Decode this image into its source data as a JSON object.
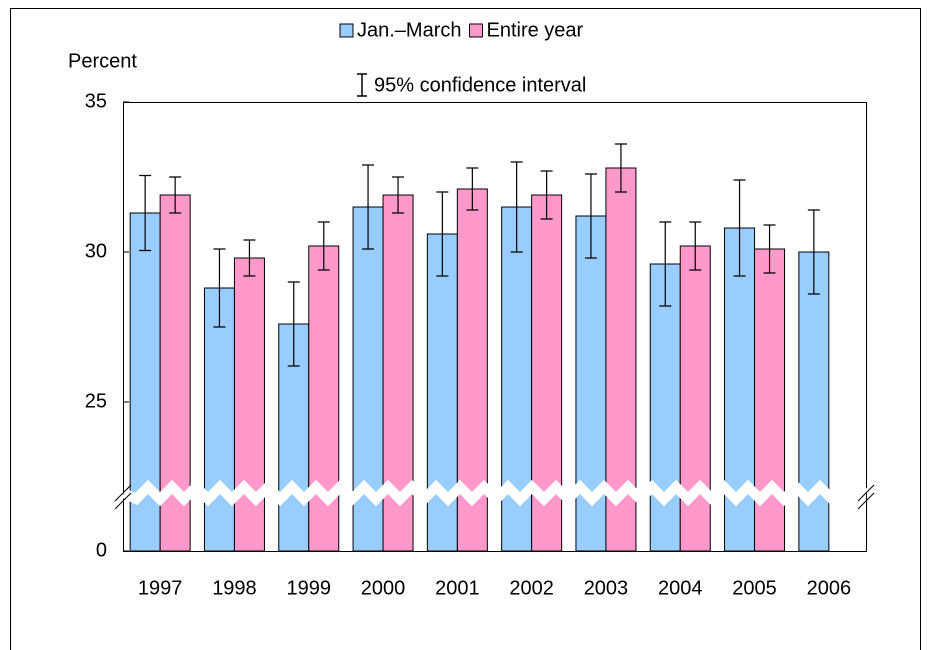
{
  "chart_data": {
    "type": "bar",
    "y_label": "Percent",
    "ci_label": "95% confidence interval",
    "categories": [
      "1997",
      "1998",
      "1999",
      "2000",
      "2001",
      "2002",
      "2003",
      "2004",
      "2005",
      "2006"
    ],
    "series": [
      {
        "name": "Jan.–March",
        "color": "#99ccff",
        "values": [
          31.3,
          28.8,
          27.6,
          31.5,
          30.6,
          31.5,
          31.2,
          29.6,
          30.8,
          30.0
        ],
        "errors": [
          1.25,
          1.3,
          1.4,
          1.4,
          1.4,
          1.5,
          1.4,
          1.4,
          1.6,
          1.4
        ]
      },
      {
        "name": "Entire year",
        "color": "#ff99cc",
        "values": [
          31.9,
          29.8,
          30.2,
          31.9,
          32.1,
          31.9,
          32.8,
          30.2,
          30.1,
          null
        ],
        "errors": [
          0.6,
          0.6,
          0.8,
          0.6,
          0.7,
          0.8,
          0.8,
          0.8,
          0.8,
          null
        ]
      }
    ],
    "ylim": [
      0,
      35
    ],
    "yticks": [
      0,
      25,
      30,
      35
    ],
    "axis_break": true,
    "grid": false
  }
}
